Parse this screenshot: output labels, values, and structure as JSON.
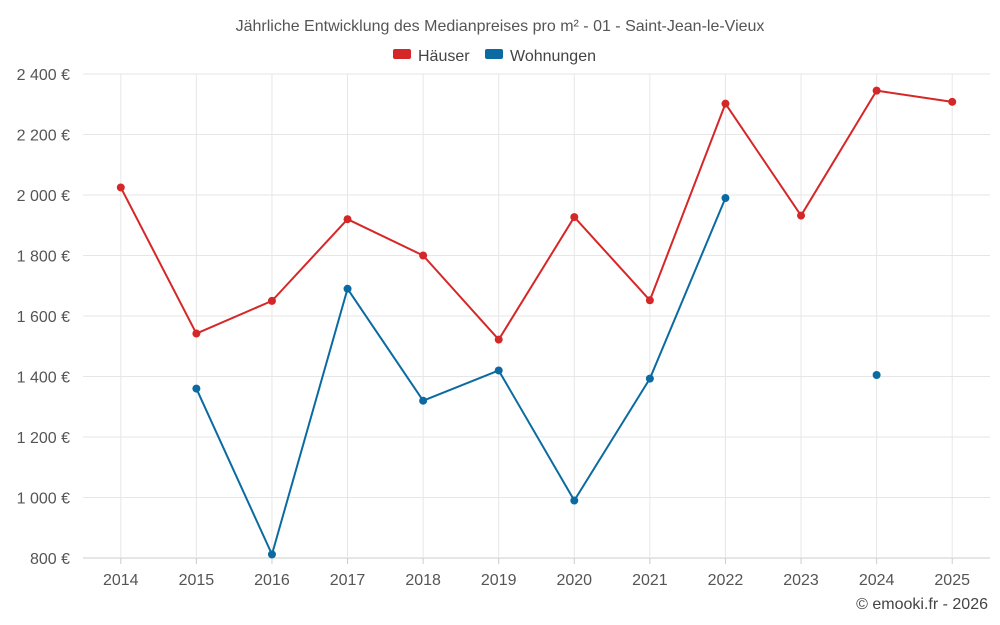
{
  "chart_data": {
    "type": "line",
    "title": "Jährliche Entwicklung des Medianpreises pro m² - 01 - Saint-Jean-le-Vieux",
    "categories": [
      "2014",
      "2015",
      "2016",
      "2017",
      "2018",
      "2019",
      "2020",
      "2021",
      "2022",
      "2023",
      "2024",
      "2025"
    ],
    "ylim": [
      800,
      2400
    ],
    "y_ticks": [
      800,
      1000,
      1200,
      1400,
      1600,
      1800,
      2000,
      2200,
      2400
    ],
    "y_tick_labels": [
      "800 €",
      "1 000 €",
      "1 200 €",
      "1 400 €",
      "1 600 €",
      "1 800 €",
      "2 000 €",
      "2 200 €",
      "2 400 €"
    ],
    "grid": true,
    "legend_position": "top-center",
    "series": [
      {
        "name": "Häuser",
        "color": "#d62728",
        "values": [
          2025,
          1542,
          1650,
          1920,
          1800,
          1522,
          1927,
          1652,
          2302,
          1932,
          2345,
          2308
        ]
      },
      {
        "name": "Wohnungen",
        "color": "#0a6aa1",
        "values": [
          null,
          1360,
          812,
          1690,
          1320,
          1420,
          990,
          1393,
          1990,
          null,
          1405,
          null
        ]
      }
    ],
    "credit": "© emooki.fr - 2026"
  }
}
